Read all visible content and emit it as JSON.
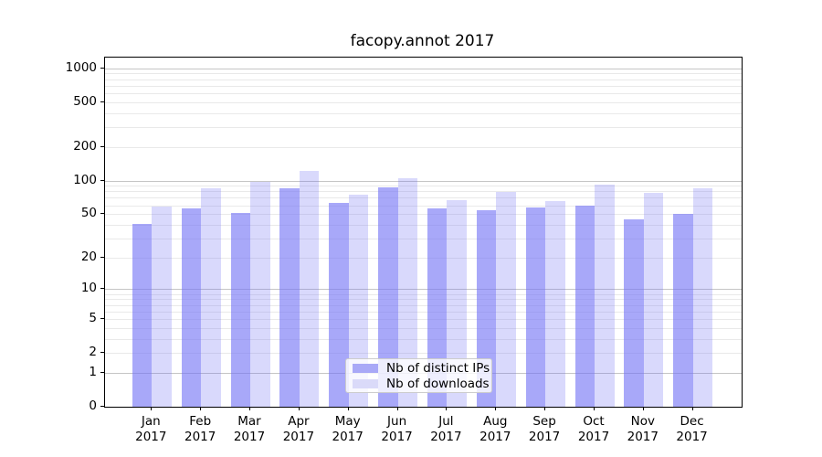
{
  "title": "facopy.annot 2017",
  "chart_data": {
    "type": "bar",
    "title": "facopy.annot 2017",
    "categories": [
      "Jan 2017",
      "Feb 2017",
      "Mar 2017",
      "Apr 2017",
      "May 2017",
      "Jun 2017",
      "Jul 2017",
      "Aug 2017",
      "Sep 2017",
      "Oct 2017",
      "Nov 2017",
      "Dec 2017"
    ],
    "series": [
      {
        "name": "Nb of distinct IPs",
        "color": "rgba(115,115,245,0.62)",
        "legend_color": "#a9a9f7",
        "values": [
          41,
          56,
          51,
          86,
          63,
          87,
          56,
          54,
          57,
          59,
          45,
          50
        ]
      },
      {
        "name": "Nb of downloads",
        "color": "rgba(115,115,245,0.27)",
        "legend_color": "#dadaf9",
        "values": [
          58,
          86,
          98,
          121,
          75,
          105,
          67,
          79,
          66,
          92,
          77,
          85
        ]
      }
    ],
    "xlabel": "",
    "ylabel": "",
    "y_axis": {
      "scale": "log10(1+x)",
      "ticks": [
        0,
        1,
        2,
        5,
        10,
        20,
        50,
        100,
        200,
        500,
        1000
      ],
      "major_gridlines": [
        1,
        10,
        100,
        1000
      ],
      "max": 1240
    },
    "grid": true,
    "legend_position": "lower center",
    "colors": {
      "bar_dark": "#a9a9f7",
      "bar_light": "#dadaf9",
      "major_grid": "#c5c5c5",
      "minor_grid": "#e9e9e9",
      "axis": "#000000"
    }
  }
}
